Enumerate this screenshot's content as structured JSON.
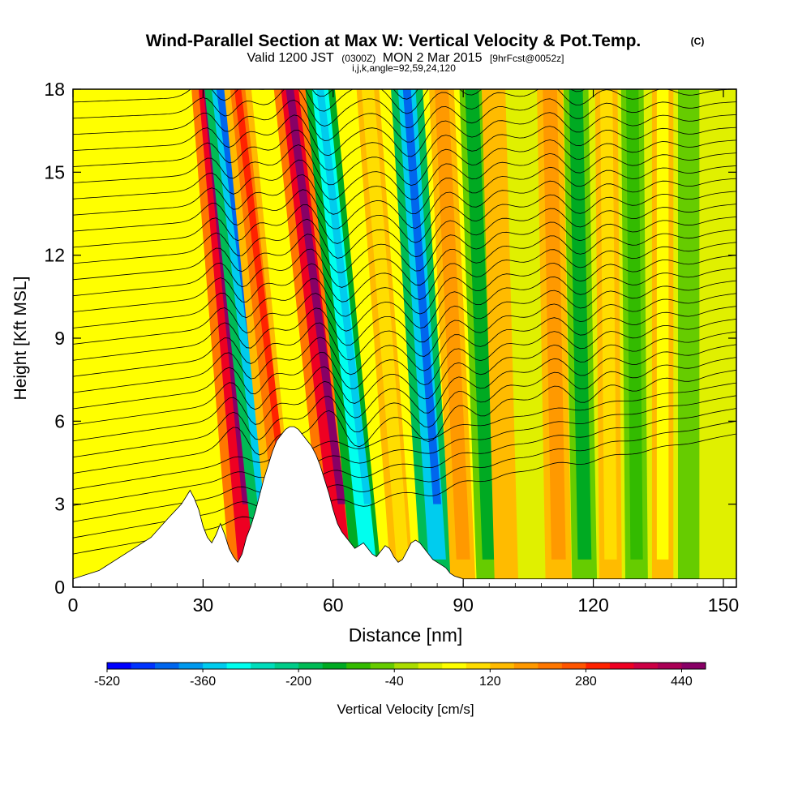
{
  "chart_data": {
    "type": "heatmap",
    "title": "Wind-Parallel Section at Max W: Vertical Velocity & Pot.Temp.",
    "title_mark": "(C)",
    "subtitle_valid": "Valid 1200 JST",
    "subtitle_utc": "(0300Z)",
    "subtitle_date": "MON 2 Mar 2015",
    "subtitle_fcst": "[9hrFcst@0052z]",
    "subtitle_ijk": "i,j,k,angle=92,59,24,120",
    "xlabel": "Distance [nm]",
    "ylabel": "Height [Kft MSL]",
    "xlim": [
      0,
      153
    ],
    "ylim": [
      0,
      18
    ],
    "x_ticks": [
      0,
      30,
      60,
      90,
      120,
      150
    ],
    "y_ticks": [
      0,
      3,
      6,
      9,
      12,
      15,
      18
    ],
    "x_tick_labels": [
      "0",
      "30",
      "60",
      "90",
      "120",
      "150"
    ],
    "y_tick_labels": [
      "0",
      "3",
      "6",
      "9",
      "12",
      "15",
      "18"
    ],
    "colorbar": {
      "label": "Vertical Velocity [cm/s]",
      "levels": [
        -520,
        -480,
        -440,
        -400,
        -360,
        -320,
        -280,
        -240,
        -200,
        -160,
        -120,
        -80,
        -40,
        0,
        40,
        80,
        120,
        160,
        200,
        240,
        280,
        320,
        360,
        400,
        440,
        480
      ],
      "tick_values": [
        -520,
        -360,
        -200,
        -40,
        120,
        280,
        440
      ],
      "tick_labels": [
        "-520",
        "-360",
        "-200",
        "-40",
        "120",
        "280",
        "440"
      ],
      "colors": [
        "#0000ff",
        "#0033ff",
        "#0066ee",
        "#0099ee",
        "#00ccee",
        "#00ffee",
        "#00ddbb",
        "#00cc88",
        "#00bb55",
        "#00aa22",
        "#33bb00",
        "#66cc00",
        "#aadd00",
        "#ddee00",
        "#ffff00",
        "#ffdd00",
        "#ffbb00",
        "#ff9900",
        "#ff7700",
        "#ff5500",
        "#ff2200",
        "#ee0022",
        "#cc0044",
        "#aa0055",
        "#880066"
      ]
    },
    "terrain_profile_kft": {
      "x": [
        0,
        6,
        12,
        18,
        22,
        25,
        27,
        28,
        29,
        30,
        31,
        32,
        33,
        34,
        35,
        36,
        37,
        38,
        39,
        40,
        41,
        42,
        43,
        44,
        45,
        46,
        47,
        48,
        49,
        50,
        51,
        52,
        53,
        54,
        55,
        56,
        57,
        58,
        59,
        60,
        61,
        62,
        63,
        64,
        65,
        66,
        67,
        68,
        69,
        70,
        71,
        72,
        73,
        74,
        75,
        76,
        77,
        78,
        79,
        80,
        81,
        82,
        83,
        84,
        85,
        86,
        87,
        88,
        89,
        90,
        92,
        95,
        98,
        100,
        153
      ],
      "y": [
        0.3,
        0.6,
        1.2,
        1.8,
        2.5,
        3.0,
        3.5,
        3.2,
        2.8,
        2.2,
        1.8,
        1.6,
        1.9,
        2.3,
        1.9,
        1.4,
        1.1,
        0.9,
        1.2,
        1.8,
        2.2,
        2.7,
        3.3,
        3.9,
        4.4,
        4.9,
        5.3,
        5.5,
        5.7,
        5.8,
        5.8,
        5.7,
        5.5,
        5.3,
        5.1,
        4.8,
        4.4,
        3.9,
        3.4,
        2.8,
        2.3,
        2.0,
        1.8,
        1.6,
        1.4,
        1.5,
        1.6,
        1.4,
        1.2,
        1.1,
        1.3,
        1.5,
        1.4,
        1.1,
        0.9,
        1.0,
        1.3,
        1.6,
        1.7,
        1.6,
        1.4,
        1.2,
        1.0,
        0.9,
        0.8,
        0.7,
        0.5,
        0.4,
        0.35,
        0.3,
        0.3,
        0.3,
        0.3,
        0.3,
        0.3
      ]
    },
    "vertical_velocity_bands_cm_s": [
      {
        "x0": 40,
        "lean": 9,
        "value": 440
      },
      {
        "x0": 46,
        "lean": 12,
        "value": -440
      },
      {
        "x0": 49,
        "lean": 11,
        "value": 280
      },
      {
        "x0": 62,
        "lean": 12,
        "value": 440
      },
      {
        "x0": 68,
        "lean": 11,
        "value": -360
      },
      {
        "x0": 76,
        "lean": 8,
        "value": 120
      },
      {
        "x0": 84,
        "lean": 7,
        "value": -440
      },
      {
        "x0": 90,
        "lean": 5,
        "value": 200
      },
      {
        "x0": 96,
        "lean": 4,
        "value": -200
      },
      {
        "x0": 100,
        "lean": 3,
        "value": 160
      },
      {
        "x0": 112,
        "lean": 2,
        "value": 240
      },
      {
        "x0": 118,
        "lean": 2,
        "value": -200
      },
      {
        "x0": 124,
        "lean": 1,
        "value": 120
      },
      {
        "x0": 130,
        "lean": 1,
        "value": -120
      },
      {
        "x0": 136,
        "lean": 0,
        "value": 80
      },
      {
        "x0": 142,
        "lean": 0,
        "value": -80
      }
    ],
    "isentrope_count": 30
  }
}
